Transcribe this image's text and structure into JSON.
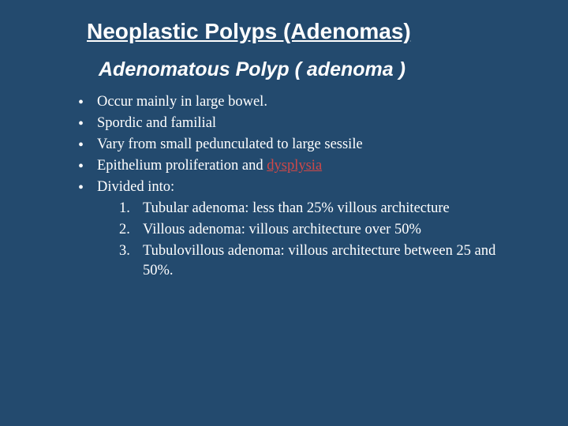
{
  "title": "Neoplastic Polyps (Adenomas) ",
  "subtitle": "Adenomatous Polyp ( adenoma )",
  "bullets": [
    {
      "text": "Occur mainly in large bowel."
    },
    {
      "text": "Spordic and familial"
    },
    {
      "text": "Vary from small pedunculated to large sessile"
    },
    {
      "prefix": "Epithelium proliferation and  ",
      "highlight": "dysplysia"
    },
    {
      "text": "Divided into:"
    }
  ],
  "numbered": [
    {
      "num": "1.",
      "text": "Tubular adenoma: less than 25% villous architecture"
    },
    {
      "num": "2.",
      "text": "Villous adenoma: villous architecture over 50%"
    },
    {
      "num": "3.",
      "text": "Tubulovillous adenoma: villous architecture between 25 and 50%."
    }
  ],
  "colors": {
    "background": "#234a6e",
    "text": "#ffffff",
    "highlight": "#d04848"
  },
  "typography": {
    "title_fontsize": 28,
    "subtitle_fontsize": 25,
    "body_fontsize": 18.5
  }
}
